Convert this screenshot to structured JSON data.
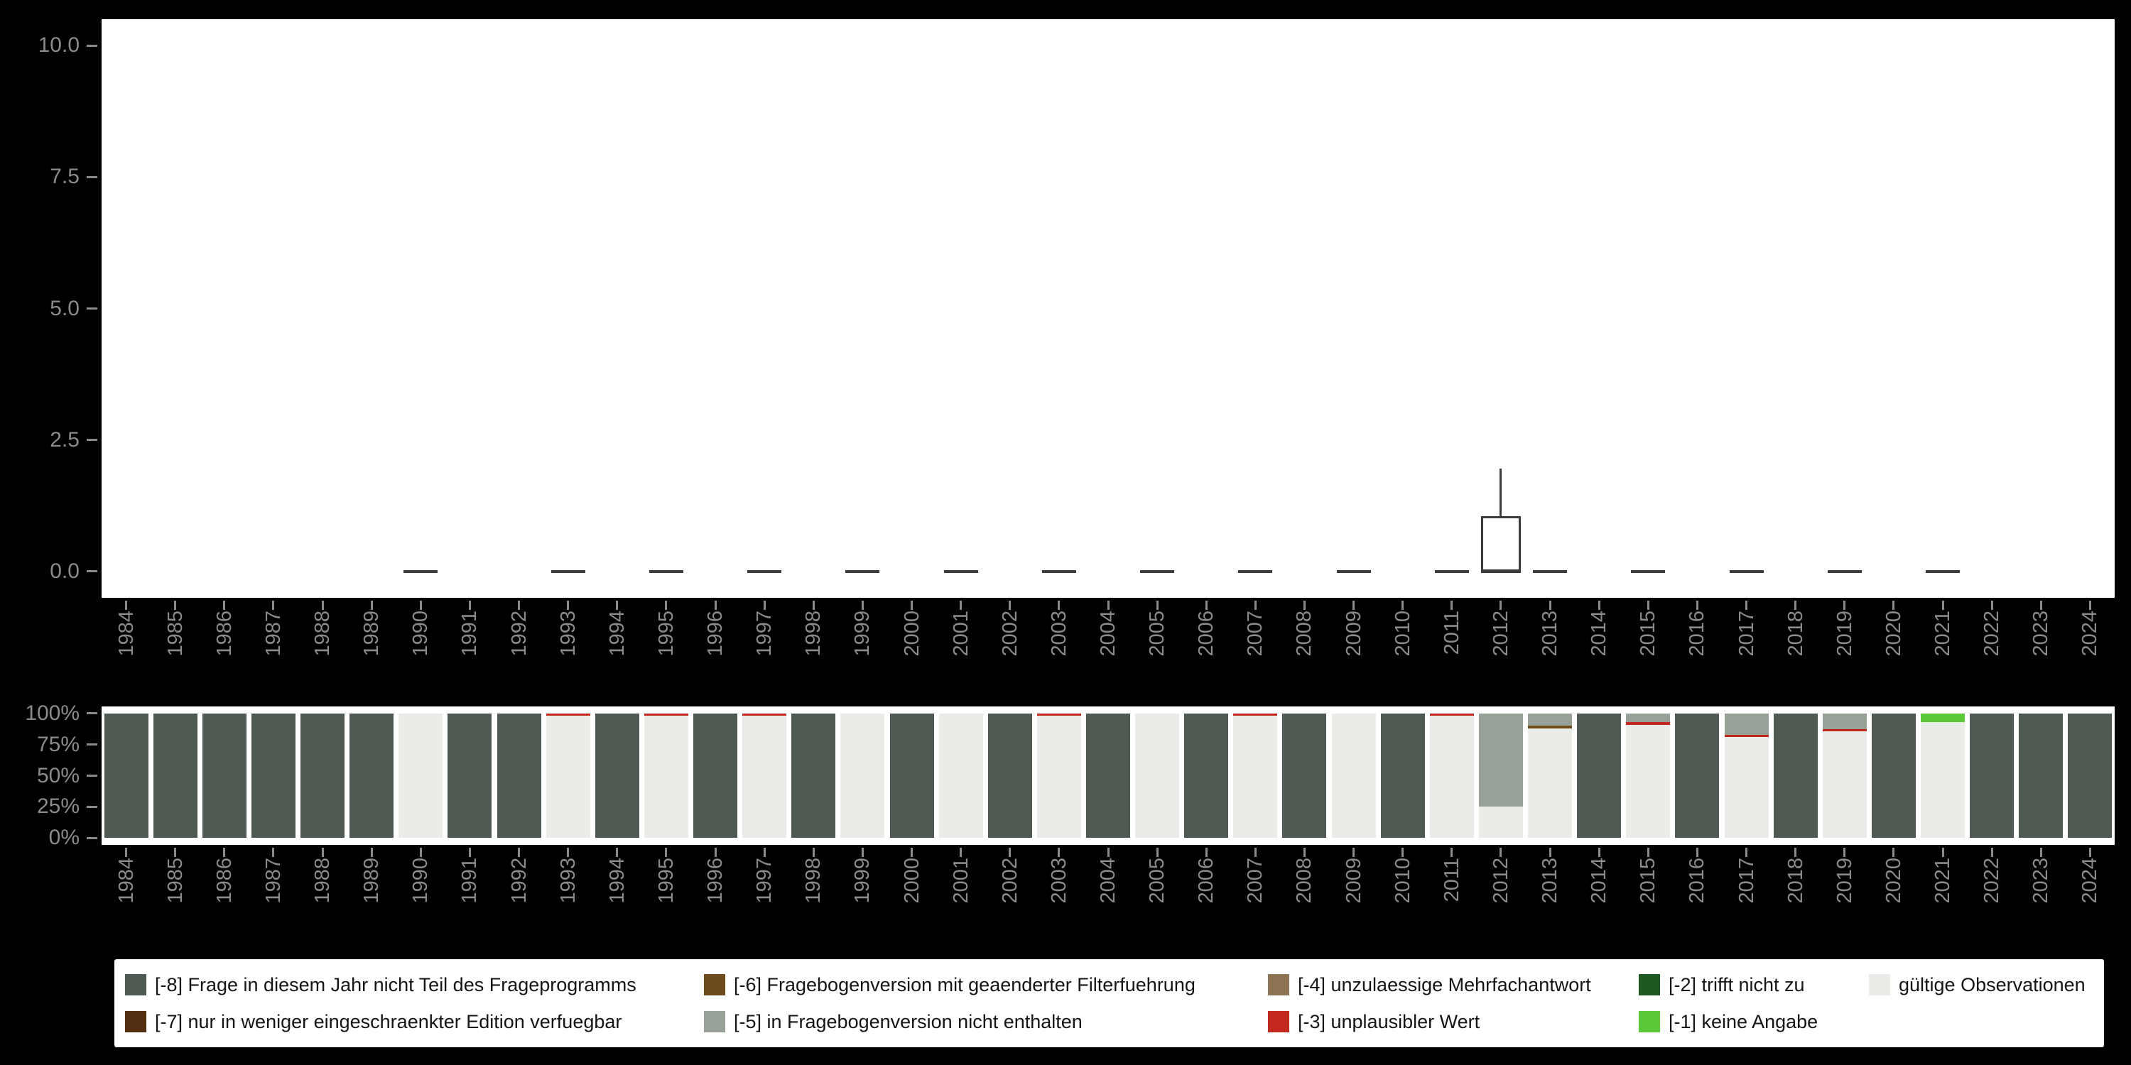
{
  "figure": {
    "background": "#000000",
    "panel_background": "#ffffff",
    "axis_text_color": "#8b8b8b",
    "boxplot_line_color": "#3c3c3c"
  },
  "years": [
    "1984",
    "1985",
    "1986",
    "1987",
    "1988",
    "1989",
    "1990",
    "1991",
    "1992",
    "1993",
    "1994",
    "1995",
    "1996",
    "1997",
    "1998",
    "1999",
    "2000",
    "2001",
    "2002",
    "2003",
    "2004",
    "2005",
    "2006",
    "2007",
    "2008",
    "2009",
    "2010",
    "2011",
    "2012",
    "2013",
    "2014",
    "2015",
    "2016",
    "2017",
    "2018",
    "2019",
    "2020",
    "2021",
    "2022",
    "2023",
    "2024"
  ],
  "chart_data": [
    {
      "type": "boxplot",
      "title": "",
      "xlabel": "",
      "ylabel": "",
      "ylim": [
        0,
        10
      ],
      "grid": false,
      "yticks": [
        {
          "label": "0.0",
          "value": 0
        },
        {
          "label": "2.5",
          "value": 2.5
        },
        {
          "label": "5.0",
          "value": 5
        },
        {
          "label": "7.5",
          "value": 7.5
        },
        {
          "label": "10.0",
          "value": 10
        }
      ],
      "boxes": [
        {
          "year": "1990",
          "lo": 0,
          "q1": 0,
          "median": 0,
          "q3": 0,
          "hi": 0
        },
        {
          "year": "1993",
          "lo": 0,
          "q1": 0,
          "median": 0,
          "q3": 0,
          "hi": 0
        },
        {
          "year": "1995",
          "lo": 0,
          "q1": 0,
          "median": 0,
          "q3": 0,
          "hi": 0
        },
        {
          "year": "1997",
          "lo": 0,
          "q1": 0,
          "median": 0,
          "q3": 0,
          "hi": 0
        },
        {
          "year": "1999",
          "lo": 0,
          "q1": 0,
          "median": 0,
          "q3": 0,
          "hi": 0
        },
        {
          "year": "2001",
          "lo": 0,
          "q1": 0,
          "median": 0,
          "q3": 0,
          "hi": 0
        },
        {
          "year": "2003",
          "lo": 0,
          "q1": 0,
          "median": 0,
          "q3": 0,
          "hi": 0
        },
        {
          "year": "2005",
          "lo": 0,
          "q1": 0,
          "median": 0,
          "q3": 0,
          "hi": 0
        },
        {
          "year": "2007",
          "lo": 0,
          "q1": 0,
          "median": 0,
          "q3": 0,
          "hi": 0
        },
        {
          "year": "2009",
          "lo": 0,
          "q1": 0,
          "median": 0,
          "q3": 0,
          "hi": 0
        },
        {
          "year": "2011",
          "lo": 0,
          "q1": 0,
          "median": 0,
          "q3": 0,
          "hi": 0
        },
        {
          "year": "2012",
          "lo": 0,
          "q1": 0,
          "median": 0,
          "q3": 1.05,
          "hi": 1.95
        },
        {
          "year": "2013",
          "lo": 0,
          "q1": 0,
          "median": 0,
          "q3": 0,
          "hi": 0
        },
        {
          "year": "2015",
          "lo": 0,
          "q1": 0,
          "median": 0,
          "q3": 0,
          "hi": 0
        },
        {
          "year": "2017",
          "lo": 0,
          "q1": 0,
          "median": 0,
          "q3": 0,
          "hi": 0
        },
        {
          "year": "2019",
          "lo": 0,
          "q1": 0,
          "median": 0,
          "q3": 0,
          "hi": 0
        },
        {
          "year": "2021",
          "lo": 0,
          "q1": 0,
          "median": 0,
          "q3": 0,
          "hi": 0
        }
      ]
    },
    {
      "type": "bar",
      "stacked_percent": true,
      "title": "",
      "xlabel": "",
      "ylabel": "",
      "grid": false,
      "yticks": [
        {
          "label": "0%",
          "value": 0
        },
        {
          "label": "25%",
          "value": 25
        },
        {
          "label": "50%",
          "value": 50
        },
        {
          "label": "75%",
          "value": 75
        },
        {
          "label": "100%",
          "value": 100
        }
      ],
      "bars": [
        {
          "year": "1984",
          "segments": [
            {
              "code": "-8",
              "pct": 100
            }
          ]
        },
        {
          "year": "1985",
          "segments": [
            {
              "code": "-8",
              "pct": 100
            }
          ]
        },
        {
          "year": "1986",
          "segments": [
            {
              "code": "-8",
              "pct": 100
            }
          ]
        },
        {
          "year": "1987",
          "segments": [
            {
              "code": "-8",
              "pct": 100
            }
          ]
        },
        {
          "year": "1988",
          "segments": [
            {
              "code": "-8",
              "pct": 100
            }
          ]
        },
        {
          "year": "1989",
          "segments": [
            {
              "code": "-8",
              "pct": 100
            }
          ]
        },
        {
          "year": "1990",
          "segments": [
            {
              "code": "valid",
              "pct": 100
            }
          ]
        },
        {
          "year": "1991",
          "segments": [
            {
              "code": "-8",
              "pct": 100
            }
          ]
        },
        {
          "year": "1992",
          "segments": [
            {
              "code": "-8",
              "pct": 100
            }
          ]
        },
        {
          "year": "1993",
          "segments": [
            {
              "code": "valid",
              "pct": 99
            },
            {
              "code": "-3",
              "pct": 1
            }
          ]
        },
        {
          "year": "1994",
          "segments": [
            {
              "code": "-8",
              "pct": 100
            }
          ]
        },
        {
          "year": "1995",
          "segments": [
            {
              "code": "valid",
              "pct": 99
            },
            {
              "code": "-3",
              "pct": 1
            }
          ]
        },
        {
          "year": "1996",
          "segments": [
            {
              "code": "-8",
              "pct": 100
            }
          ]
        },
        {
          "year": "1997",
          "segments": [
            {
              "code": "valid",
              "pct": 99
            },
            {
              "code": "-3",
              "pct": 1
            }
          ]
        },
        {
          "year": "1998",
          "segments": [
            {
              "code": "-8",
              "pct": 100
            }
          ]
        },
        {
          "year": "1999",
          "segments": [
            {
              "code": "valid",
              "pct": 100
            }
          ]
        },
        {
          "year": "2000",
          "segments": [
            {
              "code": "-8",
              "pct": 100
            }
          ]
        },
        {
          "year": "2001",
          "segments": [
            {
              "code": "valid",
              "pct": 100
            }
          ]
        },
        {
          "year": "2002",
          "segments": [
            {
              "code": "-8",
              "pct": 100
            }
          ]
        },
        {
          "year": "2003",
          "segments": [
            {
              "code": "valid",
              "pct": 99
            },
            {
              "code": "-3",
              "pct": 1
            }
          ]
        },
        {
          "year": "2004",
          "segments": [
            {
              "code": "-8",
              "pct": 100
            }
          ]
        },
        {
          "year": "2005",
          "segments": [
            {
              "code": "valid",
              "pct": 100
            }
          ]
        },
        {
          "year": "2006",
          "segments": [
            {
              "code": "-8",
              "pct": 100
            }
          ]
        },
        {
          "year": "2007",
          "segments": [
            {
              "code": "valid",
              "pct": 99
            },
            {
              "code": "-3",
              "pct": 1
            }
          ]
        },
        {
          "year": "2008",
          "segments": [
            {
              "code": "-8",
              "pct": 100
            }
          ]
        },
        {
          "year": "2009",
          "segments": [
            {
              "code": "valid",
              "pct": 100
            }
          ]
        },
        {
          "year": "2010",
          "segments": [
            {
              "code": "-8",
              "pct": 100
            }
          ]
        },
        {
          "year": "2011",
          "segments": [
            {
              "code": "valid",
              "pct": 99
            },
            {
              "code": "-3",
              "pct": 1
            }
          ]
        },
        {
          "year": "2012",
          "segments": [
            {
              "code": "valid",
              "pct": 25
            },
            {
              "code": "-5",
              "pct": 75
            }
          ]
        },
        {
          "year": "2013",
          "segments": [
            {
              "code": "valid",
              "pct": 88
            },
            {
              "code": "-6",
              "pct": 2
            },
            {
              "code": "-5",
              "pct": 10
            }
          ]
        },
        {
          "year": "2014",
          "segments": [
            {
              "code": "-8",
              "pct": 100
            }
          ]
        },
        {
          "year": "2015",
          "segments": [
            {
              "code": "valid",
              "pct": 91
            },
            {
              "code": "-3",
              "pct": 2
            },
            {
              "code": "-5",
              "pct": 7
            }
          ]
        },
        {
          "year": "2016",
          "segments": [
            {
              "code": "-8",
              "pct": 100
            }
          ]
        },
        {
          "year": "2017",
          "segments": [
            {
              "code": "valid",
              "pct": 81
            },
            {
              "code": "-3",
              "pct": 2
            },
            {
              "code": "-5",
              "pct": 17
            }
          ]
        },
        {
          "year": "2018",
          "segments": [
            {
              "code": "-8",
              "pct": 100
            }
          ]
        },
        {
          "year": "2019",
          "segments": [
            {
              "code": "valid",
              "pct": 86
            },
            {
              "code": "-3",
              "pct": 1
            },
            {
              "code": "-5",
              "pct": 13
            }
          ]
        },
        {
          "year": "2020",
          "segments": [
            {
              "code": "-8",
              "pct": 100
            }
          ]
        },
        {
          "year": "2021",
          "segments": [
            {
              "code": "valid",
              "pct": 93
            },
            {
              "code": "-1",
              "pct": 7
            }
          ]
        },
        {
          "year": "2022",
          "segments": [
            {
              "code": "-8",
              "pct": 100
            }
          ]
        },
        {
          "year": "2023",
          "segments": [
            {
              "code": "-8",
              "pct": 100
            }
          ]
        },
        {
          "year": "2024",
          "segments": [
            {
              "code": "-8",
              "pct": 100
            }
          ]
        }
      ]
    }
  ],
  "legend": {
    "items": [
      {
        "key": "-8",
        "label": "[-8] Frage in diesem Jahr nicht Teil des Frageprogramms",
        "color": "#4e5a51",
        "col": 1,
        "row": 1
      },
      {
        "key": "-7",
        "label": "[-7] nur in weniger eingeschraenkter Edition verfuegbar",
        "color": "#512f10",
        "col": 1,
        "row": 2
      },
      {
        "key": "-6",
        "label": "[-6] Fragebogenversion mit geaenderter Filterfuehrung",
        "color": "#6d4b1d",
        "col": 2,
        "row": 1
      },
      {
        "key": "-5",
        "label": "[-5] in Fragebogenversion nicht enthalten",
        "color": "#98a198",
        "col": 2,
        "row": 2
      },
      {
        "key": "-4",
        "label": "[-4] unzulaessige Mehrfachantwort",
        "color": "#8d7453",
        "col": 3,
        "row": 1
      },
      {
        "key": "-3",
        "label": "[-3] unplausibler Wert",
        "color": "#c3281f",
        "col": 3,
        "row": 2
      },
      {
        "key": "-2",
        "label": "[-2] trifft nicht zu",
        "color": "#1c581f",
        "col": 4,
        "row": 1
      },
      {
        "key": "-1",
        "label": "[-1] keine Angabe",
        "color": "#5bc93a",
        "col": 4,
        "row": 2
      },
      {
        "key": "valid",
        "label": "gültige Observationen",
        "color": "#e9ece7",
        "col": 5,
        "row": 1
      }
    ]
  }
}
